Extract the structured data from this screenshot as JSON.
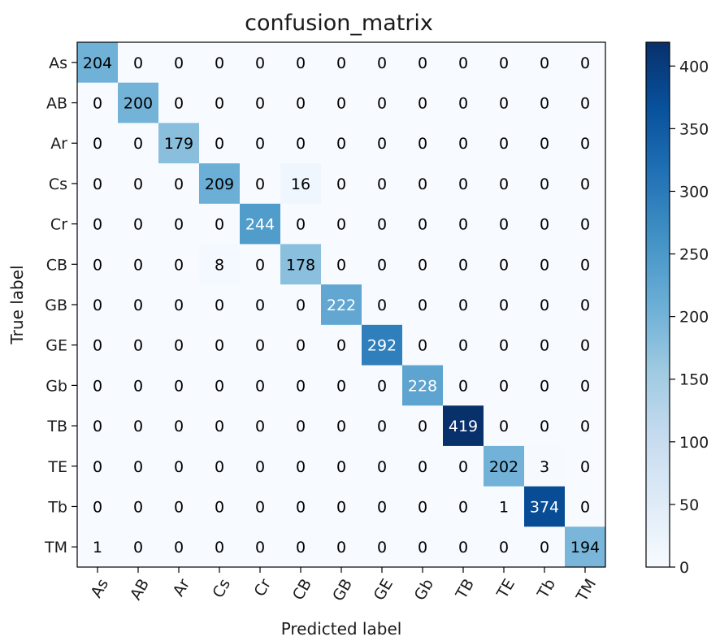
{
  "chart_data": {
    "type": "heatmap",
    "title": "confusion_matrix",
    "xlabel": "Predicted label",
    "ylabel": "True label",
    "x_categories": [
      "As",
      "AB",
      "Ar",
      "Cs",
      "Cr",
      "CB",
      "GB",
      "GE",
      "Gb",
      "TB",
      "TE",
      "Tb",
      "TM"
    ],
    "y_categories": [
      "As",
      "AB",
      "Ar",
      "Cs",
      "Cr",
      "CB",
      "GB",
      "GE",
      "Gb",
      "TB",
      "TE",
      "Tb",
      "TM"
    ],
    "values": [
      [
        204,
        0,
        0,
        0,
        0,
        0,
        0,
        0,
        0,
        0,
        0,
        0,
        0
      ],
      [
        0,
        200,
        0,
        0,
        0,
        0,
        0,
        0,
        0,
        0,
        0,
        0,
        0
      ],
      [
        0,
        0,
        179,
        0,
        0,
        0,
        0,
        0,
        0,
        0,
        0,
        0,
        0
      ],
      [
        0,
        0,
        0,
        209,
        0,
        16,
        0,
        0,
        0,
        0,
        0,
        0,
        0
      ],
      [
        0,
        0,
        0,
        0,
        244,
        0,
        0,
        0,
        0,
        0,
        0,
        0,
        0
      ],
      [
        0,
        0,
        0,
        8,
        0,
        178,
        0,
        0,
        0,
        0,
        0,
        0,
        0
      ],
      [
        0,
        0,
        0,
        0,
        0,
        0,
        222,
        0,
        0,
        0,
        0,
        0,
        0
      ],
      [
        0,
        0,
        0,
        0,
        0,
        0,
        0,
        292,
        0,
        0,
        0,
        0,
        0
      ],
      [
        0,
        0,
        0,
        0,
        0,
        0,
        0,
        0,
        228,
        0,
        0,
        0,
        0
      ],
      [
        0,
        0,
        0,
        0,
        0,
        0,
        0,
        0,
        0,
        419,
        0,
        0,
        0
      ],
      [
        0,
        0,
        0,
        0,
        0,
        0,
        0,
        0,
        0,
        0,
        202,
        3,
        0
      ],
      [
        0,
        0,
        0,
        0,
        0,
        0,
        0,
        0,
        0,
        0,
        1,
        374,
        0
      ],
      [
        1,
        0,
        0,
        0,
        0,
        0,
        0,
        0,
        0,
        0,
        0,
        0,
        194
      ]
    ],
    "colormap": "Blues",
    "colorbar": {
      "range": [
        0,
        419
      ],
      "ticks": [
        0,
        50,
        100,
        150,
        200,
        250,
        300,
        350,
        400
      ]
    },
    "text_colors": {
      "light": "#ffffff",
      "dark": "#000000"
    },
    "grid": false
  }
}
